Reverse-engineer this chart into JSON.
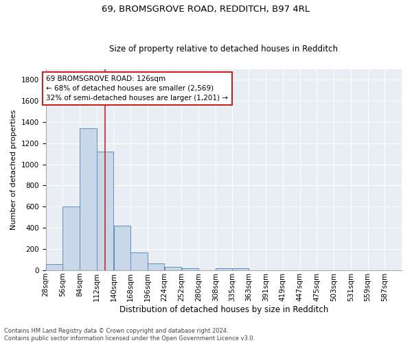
{
  "title1": "69, BROMSGROVE ROAD, REDDITCH, B97 4RL",
  "title2": "Size of property relative to detached houses in Redditch",
  "xlabel": "Distribution of detached houses by size in Redditch",
  "ylabel": "Number of detached properties",
  "footnote": "Contains HM Land Registry data © Crown copyright and database right 2024.\nContains public sector information licensed under the Open Government Licence v3.0.",
  "bar_left_edges": [
    28,
    56,
    84,
    112,
    140,
    168,
    196,
    224,
    252,
    280,
    308,
    335,
    363,
    391,
    419,
    447,
    475,
    503,
    531,
    559
  ],
  "bar_values": [
    60,
    600,
    1340,
    1120,
    420,
    170,
    65,
    35,
    20,
    0,
    20,
    20,
    0,
    0,
    0,
    0,
    0,
    0,
    0,
    0
  ],
  "bin_width": 28,
  "bar_color": "#c8d8e8",
  "bar_edge_color": "#6090b8",
  "bg_color": "#e8eef4",
  "grid_color": "#ffffff",
  "vline_x": 126,
  "vline_color": "#cc2222",
  "annotation_box_text": "69 BROMSGROVE ROAD: 126sqm\n← 68% of detached houses are smaller (2,569)\n32% of semi-detached houses are larger (1,201) →",
  "annotation_color": "#cc2222",
  "ylim": [
    0,
    1900
  ],
  "yticks": [
    0,
    200,
    400,
    600,
    800,
    1000,
    1200,
    1400,
    1600,
    1800
  ],
  "xtick_labels": [
    "28sqm",
    "56sqm",
    "84sqm",
    "112sqm",
    "140sqm",
    "168sqm",
    "196sqm",
    "224sqm",
    "252sqm",
    "280sqm",
    "308sqm",
    "335sqm",
    "363sqm",
    "391sqm",
    "419sqm",
    "447sqm",
    "475sqm",
    "503sqm",
    "531sqm",
    "559sqm",
    "587sqm"
  ],
  "fig_bg": "#ffffff",
  "title1_fontsize": 9.5,
  "title2_fontsize": 8.5,
  "ylabel_fontsize": 8,
  "xlabel_fontsize": 8.5,
  "footnote_fontsize": 6,
  "tick_fontsize": 7.5,
  "ann_fontsize": 7.5
}
